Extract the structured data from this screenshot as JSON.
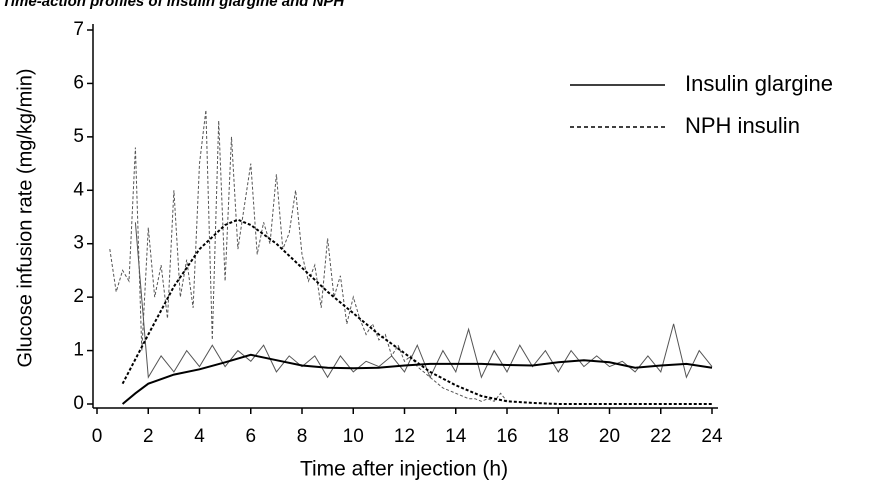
{
  "chart_data": {
    "type": "line",
    "title": "Time-action profiles of insulin glargine and NPH",
    "x_label": "Time after injection (h)",
    "y_label": "Glucose infusion rate (mg/kg/min)",
    "xlim": [
      0,
      24
    ],
    "xticks": [
      0,
      2,
      4,
      6,
      8,
      10,
      12,
      14,
      16,
      18,
      20,
      22,
      24
    ],
    "ylim": [
      0,
      7
    ],
    "yticks": [
      0,
      1,
      2,
      3,
      4,
      5,
      6,
      7
    ],
    "legend": "upper right",
    "series": [
      {
        "x": [
          1.5,
          2.0,
          2.5,
          3.0,
          3.5,
          4.0,
          4.5,
          5.0,
          5.5,
          6.0,
          6.5,
          7.0,
          7.5,
          8.0,
          8.5,
          9.0,
          9.5,
          10.0,
          10.5,
          11.0,
          11.5,
          12.0,
          12.5,
          13.0,
          13.5,
          14.0,
          14.5,
          15.0,
          15.5,
          16.0,
          16.5,
          17.0,
          17.5,
          18.0,
          18.5,
          19.0,
          19.5,
          20.0,
          20.5,
          21.0,
          21.5,
          22.0,
          22.5,
          23.0,
          23.5,
          24.0
        ],
        "values": [
          3.4,
          0.5,
          0.9,
          0.6,
          1.0,
          0.7,
          1.1,
          0.7,
          1.0,
          0.8,
          1.1,
          0.6,
          0.9,
          0.7,
          0.9,
          0.5,
          0.9,
          0.6,
          0.8,
          0.7,
          0.9,
          0.6,
          1.1,
          0.5,
          1.0,
          0.6,
          1.4,
          0.5,
          1.0,
          0.6,
          1.1,
          0.7,
          1.0,
          0.6,
          1.0,
          0.7,
          0.9,
          0.7,
          0.8,
          0.6,
          0.9,
          0.6,
          1.5,
          0.5,
          1.0,
          0.7
        ],
        "color": "#555555",
        "width": 1,
        "dash": false
      },
      {
        "x": [
          0.5,
          0.75,
          1.0,
          1.25,
          1.5,
          1.75,
          2.0,
          2.25,
          2.5,
          2.75,
          3.0,
          3.25,
          3.5,
          3.75,
          4.0,
          4.25,
          4.5,
          4.75,
          5.0,
          5.25,
          5.5,
          5.75,
          6.0,
          6.25,
          6.5,
          6.75,
          7.0,
          7.25,
          7.5,
          7.75,
          8.0,
          8.25,
          8.5,
          8.75,
          9.0,
          9.25,
          9.5,
          9.75,
          10.0,
          10.25,
          10.5,
          10.75,
          11.0,
          11.25,
          11.5,
          11.75,
          12.0,
          12.25,
          12.5,
          12.75,
          13.0,
          13.25,
          13.5,
          13.75,
          14.0,
          14.25,
          14.5,
          14.75,
          15.0,
          15.25,
          15.5,
          15.75,
          16.0
        ],
        "values": [
          2.9,
          2.1,
          2.5,
          2.3,
          4.8,
          1.0,
          3.3,
          2.0,
          2.6,
          1.6,
          4.0,
          2.0,
          2.7,
          1.8,
          4.5,
          5.5,
          1.2,
          5.3,
          2.3,
          5.0,
          2.9,
          3.7,
          4.5,
          2.8,
          3.4,
          3.0,
          4.3,
          2.9,
          3.2,
          4.0,
          2.8,
          2.3,
          2.6,
          1.8,
          3.1,
          2.0,
          2.4,
          1.5,
          2.0,
          1.6,
          1.3,
          1.5,
          1.2,
          1.3,
          0.9,
          1.1,
          0.8,
          0.9,
          0.7,
          0.6,
          0.5,
          0.4,
          0.3,
          0.25,
          0.2,
          0.15,
          0.1,
          0.1,
          0.05,
          0.1,
          0.05,
          0.2,
          0.05
        ],
        "color": "#555555",
        "width": 1,
        "dash": true
      },
      {
        "name": "Insulin glargine",
        "x": [
          1,
          1.5,
          2,
          3,
          4,
          5,
          6,
          7,
          8,
          9,
          10,
          11,
          12,
          13,
          14,
          15,
          16,
          17,
          18,
          19,
          20,
          21,
          22,
          23,
          24
        ],
        "values": [
          0,
          0.2,
          0.38,
          0.55,
          0.65,
          0.78,
          0.92,
          0.82,
          0.72,
          0.68,
          0.67,
          0.68,
          0.72,
          0.75,
          0.75,
          0.75,
          0.73,
          0.72,
          0.78,
          0.82,
          0.78,
          0.68,
          0.72,
          0.75,
          0.68
        ],
        "color": "#000000",
        "width": 2,
        "dash": false
      },
      {
        "name": "NPH insulin",
        "x": [
          1,
          2,
          3,
          4,
          5,
          5.5,
          6,
          7,
          8,
          9,
          10,
          11,
          12,
          13,
          14,
          15,
          16,
          17,
          18,
          20,
          22,
          24
        ],
        "values": [
          0.38,
          1.3,
          2.2,
          2.9,
          3.35,
          3.45,
          3.35,
          3.0,
          2.55,
          2.1,
          1.7,
          1.3,
          0.95,
          0.6,
          0.35,
          0.15,
          0.05,
          0.02,
          0,
          0,
          0,
          0
        ],
        "color": "#000000",
        "width": 2,
        "dash": true
      }
    ]
  }
}
